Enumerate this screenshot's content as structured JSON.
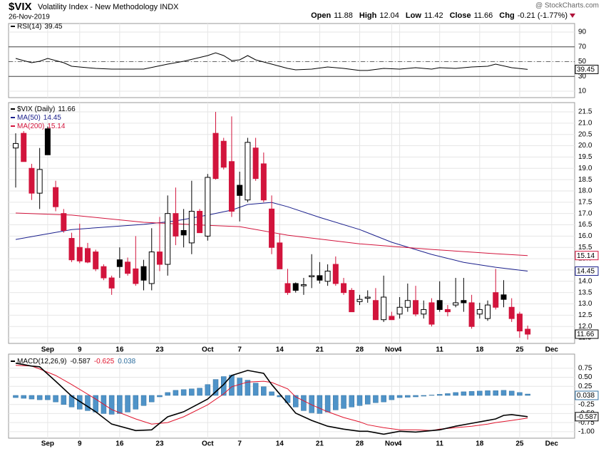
{
  "header": {
    "symbol": "$VIX",
    "name": "Volatility Index - New Methodology INDX",
    "date": "26-Nov-2019",
    "source": "@ StockCharts.com",
    "open_label": "Open",
    "high_label": "High",
    "low_label": "Low",
    "close_label": "Close",
    "chg_label": "Chg",
    "chg": "-0.21 (-1.77%)"
  },
  "chart_data": [
    {
      "type": "rsi",
      "title": "RSI(14)",
      "line": {
        "color": "#000000",
        "x": [
          0,
          1,
          2,
          3,
          4,
          6,
          7,
          10,
          12,
          16,
          19,
          21,
          24,
          25,
          26,
          27,
          28,
          29,
          30,
          32,
          34,
          35,
          37,
          39,
          41,
          43,
          44,
          46,
          48,
          50,
          52,
          53,
          55,
          57,
          59,
          60,
          62,
          64
        ],
        "values": [
          54.3,
          51.4,
          48.6,
          50.5,
          54.3,
          48.6,
          43.7,
          40.8,
          39.9,
          39.9,
          46.6,
          50.5,
          58.2,
          62.0,
          58.2,
          51.4,
          52.4,
          58.2,
          52.4,
          46.6,
          40.8,
          38.9,
          39.9,
          42.8,
          40.8,
          38.0,
          38.0,
          40.8,
          39.9,
          41.8,
          39.9,
          41.8,
          40.8,
          42.8,
          43.7,
          46.6,
          41.8,
          39.45
        ]
      },
      "ylim": [
        1.3,
        101.6
      ],
      "yticks": [
        10,
        30,
        50,
        70,
        90
      ],
      "overbought": 70,
      "oversold": 30,
      "centerline": 50,
      "grid": true
    },
    {
      "type": "candlestick",
      "title": "$VIX (Daily)",
      "open": [
        19.9,
        20.55,
        19.0,
        17.9,
        20.75,
        18.15,
        17.0,
        15.9,
        15.5,
        15.45,
        15.3,
        14.65,
        14.15,
        14.95,
        14.85,
        14.55,
        14.65,
        13.9,
        15.3,
        14.75,
        17.0,
        16.25,
        15.7,
        17.1,
        16.0,
        20.55,
        20.2,
        19.3,
        18.25,
        17.6,
        19.9,
        19.2,
        17.2,
        15.7,
        13.9,
        13.9,
        13.8,
        14.2,
        14.25,
        14.0,
        14.75,
        13.9,
        13.6,
        13.1,
        13.25,
        13.15,
        12.3,
        12.45,
        12.55,
        12.85,
        13.15,
        12.55,
        13.05,
        13.15,
        12.75,
        12.95,
        13.15,
        13.05,
        12.55,
        12.35,
        13.5,
        13.4,
        12.85,
        12.55,
        11.88
      ],
      "high": [
        20.55,
        20.65,
        19.2,
        19.9,
        20.85,
        18.45,
        17.2,
        16.15,
        16.55,
        15.7,
        15.4,
        14.75,
        14.25,
        15.5,
        15.05,
        16.0,
        14.95,
        16.35,
        16.85,
        17.8,
        18.15,
        17.2,
        18.45,
        17.2,
        18.75,
        21.5,
        20.35,
        21.3,
        18.85,
        20.35,
        20.35,
        19.7,
        17.8,
        16.1,
        14.55,
        13.95,
        14.15,
        15.2,
        14.85,
        14.75,
        15.1,
        14.15,
        13.7,
        13.4,
        13.6,
        13.7,
        14.25,
        12.65,
        13.3,
        13.9,
        13.8,
        13.15,
        13.25,
        14.0,
        12.95,
        14.15,
        14.15,
        13.4,
        13.05,
        13.15,
        14.55,
        14.05,
        13.25,
        12.65,
        12.04
      ],
      "low": [
        18.15,
        19.3,
        17.6,
        17.2,
        19.6,
        17.1,
        16.15,
        14.85,
        14.8,
        14.8,
        14.45,
        14.05,
        13.4,
        14.15,
        14.25,
        13.8,
        13.6,
        13.6,
        14.45,
        14.25,
        15.6,
        15.5,
        15.2,
        16.15,
        15.8,
        18.5,
        18.95,
        16.85,
        16.65,
        17.5,
        18.45,
        17.5,
        15.2,
        14.55,
        13.4,
        13.5,
        13.4,
        13.7,
        13.9,
        13.8,
        13.8,
        13.4,
        12.65,
        12.95,
        13.05,
        12.3,
        12.2,
        12.3,
        12.35,
        12.65,
        12.45,
        12.35,
        12.0,
        12.65,
        12.45,
        12.85,
        12.65,
        11.9,
        12.35,
        12.25,
        12.75,
        12.85,
        12.2,
        11.5,
        11.42
      ],
      "close": [
        20.1,
        19.3,
        17.9,
        18.95,
        19.6,
        17.3,
        16.25,
        14.95,
        14.9,
        14.85,
        14.55,
        14.15,
        13.7,
        14.65,
        14.35,
        13.9,
        14.05,
        15.3,
        14.75,
        17.0,
        16.0,
        16.05,
        17.1,
        16.15,
        18.6,
        18.55,
        19.05,
        17.1,
        17.8,
        20.15,
        18.55,
        17.6,
        15.5,
        14.55,
        13.5,
        13.6,
        13.85,
        14.25,
        14.05,
        14.45,
        13.9,
        13.5,
        12.65,
        13.2,
        13.3,
        12.3,
        13.3,
        12.3,
        12.85,
        13.15,
        12.55,
        12.75,
        12.1,
        12.75,
        12.65,
        13.05,
        13.05,
        12.0,
        12.75,
        12.95,
        12.85,
        13.2,
        12.35,
        11.8,
        11.66
      ],
      "candle_colors": [
        "#000000",
        "#d2143c",
        "#d2143c",
        "#000000",
        "#000000",
        "#d2143c",
        "#d2143c",
        "#d2143c",
        "#d2143c",
        "#d2143c",
        "#d2143c",
        "#d2143c",
        "#d2143c",
        "#000000",
        "#d2143c",
        "#d2143c",
        "#000000",
        "#000000",
        "#d2143c",
        "#000000",
        "#d2143c",
        "#000000",
        "#000000",
        "#d2143c",
        "#000000",
        "#d2143c",
        "#d2143c",
        "#d2143c",
        "#000000",
        "#000000",
        "#d2143c",
        "#d2143c",
        "#d2143c",
        "#d2143c",
        "#d2143c",
        "#000000",
        "#000000",
        "#000000",
        "#000000",
        "#000000",
        "#d2143c",
        "#d2143c",
        "#d2143c",
        "#000000",
        "#000000",
        "#d2143c",
        "#000000",
        "#d2143c",
        "#000000",
        "#000000",
        "#d2143c",
        "#000000",
        "#d2143c",
        "#000000",
        "#d2143c",
        "#000000",
        "#000000",
        "#d2143c",
        "#000000",
        "#000000",
        "#d2143c",
        "#000000",
        "#d2143c",
        "#d2143c",
        "#d2143c"
      ],
      "series": [
        {
          "name": "MA(50)",
          "color": "#1a1f8c",
          "x": [
            0,
            3,
            7,
            12,
            16,
            20,
            24,
            27,
            29,
            32,
            34,
            38,
            43,
            47,
            52,
            56,
            60,
            64
          ],
          "values": [
            15.85,
            16.04,
            16.29,
            16.42,
            16.52,
            16.67,
            16.93,
            17.15,
            17.4,
            17.49,
            17.3,
            16.83,
            16.29,
            15.73,
            15.19,
            14.84,
            14.62,
            14.45
          ]
        },
        {
          "name": "MA(200)",
          "color": "#d2143c",
          "x": [
            0,
            7,
            16,
            24,
            28,
            34,
            43,
            52,
            60,
            64
          ],
          "values": [
            17.02,
            16.93,
            16.61,
            16.48,
            16.42,
            16.04,
            15.66,
            15.41,
            15.22,
            15.14
          ]
        }
      ],
      "xlim": [
        -0.89,
        69.87
      ],
      "xticks": [
        {
          "value": 4,
          "label": "Sep"
        },
        {
          "value": 8,
          "label": "9"
        },
        {
          "value": 13,
          "label": "16"
        },
        {
          "value": 18,
          "label": "23"
        },
        {
          "value": 24,
          "label": "Oct"
        },
        {
          "value": 28,
          "label": "7"
        },
        {
          "value": 33,
          "label": "14"
        },
        {
          "value": 38,
          "label": "21"
        },
        {
          "value": 43,
          "label": "28"
        },
        {
          "value": 47,
          "label": "Nov"
        },
        {
          "value": 48,
          "label": "4"
        },
        {
          "value": 53,
          "label": "11"
        },
        {
          "value": 58,
          "label": "18"
        },
        {
          "value": 63,
          "label": "25"
        },
        {
          "value": 67,
          "label": "Dec"
        }
      ],
      "ylim": [
        11.25,
        21.91
      ],
      "yticks": [
        11.5,
        {
          "value": 12,
          "label": "12.0"
        },
        12.5,
        {
          "value": 13,
          "label": "13.0"
        },
        13.5,
        {
          "value": 14,
          "label": "14.0"
        },
        14.5,
        {
          "value": 15,
          "label": "15.0"
        },
        15.5,
        {
          "value": 16,
          "label": "16.0"
        },
        16.5,
        {
          "value": 17,
          "label": "17.0"
        },
        17.5,
        {
          "value": 18,
          "label": "18.0"
        },
        18.5,
        {
          "value": 19,
          "label": "19.0"
        },
        19.5,
        {
          "value": 20,
          "label": "20.0"
        },
        20.5,
        {
          "value": 21,
          "label": "21.0"
        },
        21.5
      ],
      "grid": true
    },
    {
      "type": "macd",
      "title": "MACD(12,26,9)",
      "macd": {
        "color": "#000000",
        "x": [
          0,
          2,
          3,
          5,
          7,
          10,
          12,
          15,
          17,
          19,
          21,
          24,
          26,
          27,
          29,
          31,
          32,
          34,
          35,
          37,
          39,
          41,
          43,
          44,
          46,
          48,
          50,
          52,
          53,
          55,
          57,
          59,
          60,
          61,
          62,
          64
        ],
        "values": [
          0.89,
          0.81,
          0.79,
          0.39,
          -0.02,
          -0.45,
          -0.79,
          -0.97,
          -0.95,
          -0.59,
          -0.45,
          -0.1,
          0.3,
          0.55,
          0.69,
          0.61,
          0.3,
          -0.22,
          -0.49,
          -0.69,
          -0.85,
          -0.93,
          -0.99,
          -0.99,
          -1.07,
          -0.99,
          -1.01,
          -0.97,
          -0.95,
          -0.85,
          -0.77,
          -0.69,
          -0.65,
          -0.55,
          -0.53,
          -0.587
        ]
      },
      "signal": {
        "color": "#e0142c",
        "x": [
          0,
          2,
          3,
          5,
          7,
          10,
          12,
          15,
          17,
          19,
          21,
          24,
          26,
          27,
          29,
          31,
          32,
          34,
          35,
          37,
          39,
          41,
          43,
          44,
          46,
          48,
          50,
          52,
          53,
          55,
          57,
          59,
          60,
          62,
          64
        ],
        "values": [
          0.83,
          0.81,
          0.73,
          0.55,
          0.3,
          -0.1,
          -0.39,
          -0.65,
          -0.79,
          -0.75,
          -0.59,
          -0.26,
          0.04,
          0.24,
          0.37,
          0.39,
          0.36,
          0.18,
          -0.04,
          -0.26,
          -0.45,
          -0.61,
          -0.73,
          -0.81,
          -0.89,
          -0.95,
          -0.95,
          -0.97,
          -0.93,
          -0.89,
          -0.85,
          -0.79,
          -0.75,
          -0.69,
          -0.625
        ]
      },
      "histogram": {
        "color": "#4f93c8",
        "values": [
          -0.06,
          -0.08,
          -0.1,
          -0.12,
          -0.12,
          -0.18,
          -0.25,
          -0.32,
          -0.38,
          -0.42,
          -0.46,
          -0.5,
          -0.52,
          -0.5,
          -0.46,
          -0.38,
          -0.28,
          -0.18,
          -0.04,
          0.08,
          0.14,
          0.16,
          0.18,
          0.2,
          0.3,
          0.44,
          0.52,
          0.56,
          0.48,
          0.42,
          0.34,
          0.24,
          0.1,
          -0.04,
          -0.2,
          -0.32,
          -0.42,
          -0.48,
          -0.5,
          -0.46,
          -0.4,
          -0.36,
          -0.32,
          -0.28,
          -0.24,
          -0.2,
          -0.18,
          -0.12,
          -0.06,
          -0.05,
          -0.04,
          -0.02,
          0.01,
          0.03,
          0.05,
          0.08,
          0.1,
          0.11,
          0.12,
          0.13,
          0.13,
          0.14,
          0.12,
          0.08,
          0.038
        ]
      },
      "ylim": [
        -1.18,
        1.14
      ],
      "yticks": [
        {
          "value": -1,
          "label": "-1.00"
        },
        -0.75,
        {
          "value": -0.5,
          "label": "-0.50"
        },
        -0.25,
        0.25,
        {
          "value": 0.5,
          "label": "0.50"
        },
        0.75
      ],
      "grid": true
    }
  ]
}
